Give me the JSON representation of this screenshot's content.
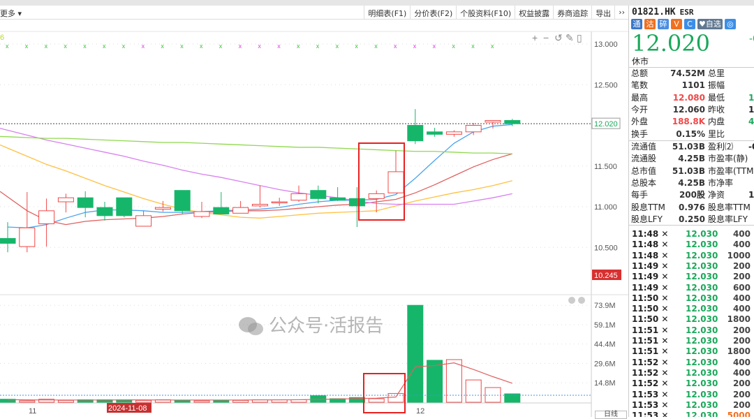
{
  "toolbar": {
    "more": "更多 ▾",
    "tabs": [
      "明细表(F1)",
      "分价表(F2)",
      "个股资料(F10)",
      "权益披露",
      "券商追踪",
      "导出",
      "››"
    ]
  },
  "chart": {
    "indicator_label": "6",
    "tool_icons": [
      "plus-icon",
      "minus-icon",
      "undo-icon",
      "pencil-icon",
      "panel-icon"
    ],
    "price_ticks": [
      "13.000",
      "12.500",
      "11.500",
      "11.000",
      "10.500"
    ],
    "last_price_label": "12.020",
    "low_label": "10.245",
    "volume_ticks": [
      "73.9M",
      "59.1M",
      "44.4M",
      "29.6M",
      "14.8M"
    ],
    "x_labels": [
      "11",
      "12"
    ],
    "date_badge": "2024-11-08",
    "period": "日线",
    "colors": {
      "up": "#f04848",
      "down": "#16b66a",
      "ma5": "#4aa3f0",
      "ma10": "#e06060",
      "ma20": "#ffc040",
      "ma30": "#d980f0",
      "ma60": "#90d850"
    }
  },
  "chart_data": {
    "type": "candlestick",
    "ohlc": [
      [
        10.61,
        10.81,
        10.44,
        10.55
      ],
      [
        10.51,
        11.18,
        10.44,
        10.74
      ],
      [
        10.79,
        11.1,
        10.51,
        10.95
      ],
      [
        11.06,
        11.16,
        10.93,
        11.11
      ],
      [
        11.11,
        11.19,
        10.87,
        10.99
      ],
      [
        10.99,
        11.06,
        10.83,
        10.89
      ],
      [
        11.11,
        11.11,
        10.87,
        10.89
      ],
      [
        10.76,
        10.95,
        10.76,
        10.89
      ],
      [
        10.97,
        11.07,
        10.94,
        10.99
      ],
      [
        11.2,
        11.2,
        10.91,
        10.95
      ],
      [
        10.88,
        11.06,
        10.86,
        10.94
      ],
      [
        10.99,
        11.18,
        10.91,
        10.91
      ],
      [
        10.92,
        11.07,
        10.92,
        10.99
      ],
      [
        11.01,
        11.26,
        10.99,
        11.03
      ],
      [
        11.05,
        11.11,
        11.01,
        11.06
      ],
      [
        11.08,
        11.26,
        11.06,
        11.16
      ],
      [
        11.2,
        11.26,
        11.04,
        11.1
      ],
      [
        11.11,
        11.24,
        11.07,
        11.08
      ],
      [
        11.1,
        11.24,
        10.75,
        11.01
      ],
      [
        11.1,
        11.2,
        10.93,
        11.16
      ],
      [
        11.17,
        11.69,
        11.17,
        11.43
      ],
      [
        12.0,
        12.2,
        11.77,
        11.81
      ],
      [
        11.92,
        11.97,
        11.86,
        11.89
      ],
      [
        11.89,
        11.94,
        11.86,
        11.92
      ],
      [
        11.92,
        12.03,
        11.88,
        12.0
      ],
      [
        12.04,
        12.06,
        11.96,
        12.06
      ],
      [
        12.06,
        12.08,
        11.99,
        12.02
      ]
    ],
    "ma": {
      "ma5": [
        10.75,
        10.74,
        10.78,
        10.86,
        10.93,
        10.96,
        10.96,
        10.95,
        10.93,
        10.93,
        10.94,
        10.95,
        10.96,
        10.97,
        10.99,
        11.03,
        11.06,
        11.08,
        11.08,
        11.09,
        11.15,
        11.35,
        11.57,
        11.78,
        11.92,
        11.99,
        12.01
      ],
      "ma10": [
        11.12,
        10.95,
        10.83,
        10.78,
        10.82,
        10.84,
        10.85,
        10.86,
        10.88,
        10.91,
        10.93,
        10.94,
        10.95,
        10.95,
        10.96,
        10.98,
        11.0,
        11.02,
        11.03,
        11.06,
        11.09,
        11.17,
        11.27,
        11.38,
        11.49,
        11.58,
        11.65
      ],
      "ma20": [
        11.72,
        11.62,
        11.52,
        11.44,
        11.35,
        11.26,
        11.18,
        11.1,
        11.03,
        10.97,
        10.93,
        10.9,
        10.87,
        10.86,
        10.88,
        10.9,
        10.92,
        10.93,
        10.94,
        10.95,
        11.01,
        11.07,
        11.12,
        11.17,
        11.21,
        11.26,
        11.32
      ],
      "ma30": [
        11.94,
        11.88,
        11.82,
        11.77,
        11.72,
        11.67,
        11.62,
        11.56,
        11.51,
        11.45,
        11.4,
        11.36,
        11.31,
        11.26,
        11.21,
        11.17,
        11.14,
        11.11,
        11.07,
        11.04,
        11.03,
        11.03,
        11.03,
        11.03,
        11.07,
        11.11,
        11.16
      ],
      "ma60": [
        11.86,
        11.85,
        11.84,
        11.84,
        11.83,
        11.82,
        11.81,
        11.8,
        11.79,
        11.79,
        11.78,
        11.77,
        11.76,
        11.75,
        11.74,
        11.73,
        11.73,
        11.72,
        11.71,
        11.7,
        11.69,
        11.68,
        11.68,
        11.67,
        11.66,
        11.66,
        11.65
      ]
    },
    "volume_m": [
      2.3,
      1.1,
      2.3,
      1.4,
      1.9,
      1.9,
      1.9,
      1.4,
      1.9,
      1.4,
      1.1,
      1.4,
      1.4,
      1.9,
      1.9,
      1.9,
      5.0,
      2.7,
      3.6,
      2.7,
      6.7,
      73.9,
      32.0,
      32.5,
      17.0,
      11.2,
      6.4
    ],
    "volume_ma_m": [
      2.0,
      1.8,
      1.7,
      1.7,
      1.7,
      1.7,
      1.8,
      1.8,
      1.7,
      1.7,
      1.7,
      1.7,
      1.7,
      1.8,
      1.8,
      1.9,
      2.2,
      2.4,
      2.8,
      3.1,
      4.0,
      27.0,
      28.0,
      30.0,
      25.0,
      19.5,
      14.5
    ],
    "marker_colors": [
      "g",
      "g",
      "g",
      "g",
      "g",
      "g",
      "g",
      "m",
      "g",
      "g",
      "g",
      "g",
      "m",
      "m",
      "m",
      "g",
      "g",
      "g",
      "g",
      "g",
      "m",
      "m",
      "m",
      "g",
      "g",
      "g"
    ],
    "ylim": [
      10.245,
      13.0
    ],
    "volume_ylim": [
      0,
      73.9
    ]
  },
  "quote": {
    "code": "01821.HK",
    "name": "ESR",
    "badges": [
      "通",
      "沽",
      "碎",
      "V",
      "C",
      "♥自选",
      "◎"
    ],
    "price": "12.020",
    "change_cut": "-0",
    "status": "休市",
    "rows1": [
      [
        "总额",
        "74.52M",
        "总里",
        ""
      ],
      [
        "笔数",
        "1101",
        "振幅",
        ""
      ],
      [
        "最高",
        "12.080",
        "最低",
        "1"
      ],
      [
        "今开",
        "12.060",
        "昨收",
        "1"
      ],
      [
        "外盘",
        "188.8K",
        "内盘",
        "4"
      ],
      [
        "换手",
        "0.15%",
        "里比",
        ""
      ]
    ],
    "rows2": [
      [
        "流通值",
        "51.03B",
        "盈利⑵",
        "-0"
      ],
      [
        "流通股",
        "4.25B",
        "市盈率(静)",
        ""
      ],
      [
        "总市值",
        "51.03B",
        "市盈率(TTM)",
        ""
      ],
      [
        "总股本",
        "4.25B",
        "市净率",
        ""
      ],
      [
        "每手",
        "200股",
        "净资",
        "15"
      ],
      [
        "股息TTM",
        "0.976",
        "股息率TTM",
        ""
      ],
      [
        "股息LFY",
        "0.250",
        "股息率LFY",
        ""
      ]
    ],
    "trades": [
      [
        "11:48 ✕",
        "12.030",
        "400"
      ],
      [
        "11:48 ✕",
        "12.030",
        "400"
      ],
      [
        "11:48 ✕",
        "12.030",
        "1000"
      ],
      [
        "11:49 ✕",
        "12.030",
        "200"
      ],
      [
        "11:49 ✕",
        "12.030",
        "200"
      ],
      [
        "11:49 ✕",
        "12.030",
        "600"
      ],
      [
        "11:50 ✕",
        "12.030",
        "400"
      ],
      [
        "11:50 ✕",
        "12.030",
        "400"
      ],
      [
        "11:50 ✕",
        "12.030",
        "1800"
      ],
      [
        "11:51 ✕",
        "12.030",
        "200"
      ],
      [
        "11:51 ✕",
        "12.030",
        "200"
      ],
      [
        "11:51 ✕",
        "12.030",
        "1800"
      ],
      [
        "11:52 ✕",
        "12.030",
        "400"
      ],
      [
        "11:52 ✕",
        "12.030",
        "400"
      ],
      [
        "11:52 ✕",
        "12.030",
        "200"
      ],
      [
        "11:53 ✕",
        "12.030",
        "200"
      ],
      [
        "11:53 ✕",
        "12.030",
        "200"
      ],
      [
        "11:53 ✕",
        "12.030",
        "5000"
      ]
    ]
  },
  "watermark": "公众号·活报告"
}
